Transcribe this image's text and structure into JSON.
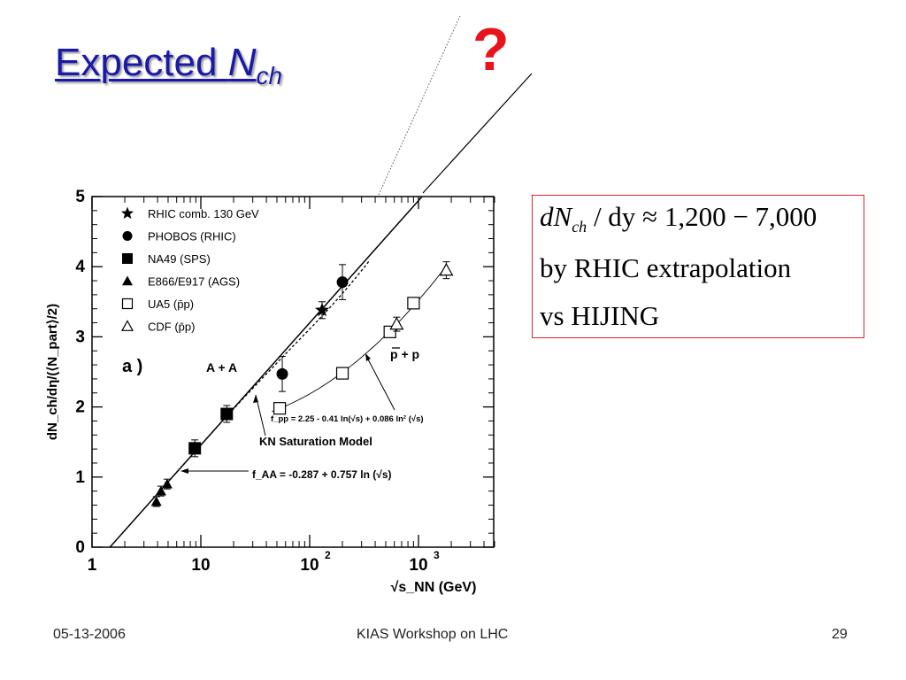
{
  "slide": {
    "title_main": "Expected ",
    "title_n": "N",
    "title_sub": "ch",
    "question_mark": "?",
    "footer_date": "05-13-2006",
    "footer_center": "KIAS Workshop on LHC",
    "footer_page": "29"
  },
  "infobox": {
    "line1_var": "dN",
    "line1_sub": "ch",
    "line1_rest": " / dy ≈ 1,200 − 7,000",
    "line2": "by RHIC extrapolation",
    "line3": "vs HIJING"
  },
  "chart_data": {
    "type": "scatter",
    "x_scale": "log",
    "xlim": [
      1,
      5000
    ],
    "ylim": [
      0,
      5
    ],
    "x_ticks": [
      {
        "value": 1,
        "label": "1"
      },
      {
        "value": 10,
        "label": "10"
      },
      {
        "value": 100,
        "label": "10",
        "sup": "2"
      },
      {
        "value": 1000,
        "label": "10",
        "sup": "3"
      }
    ],
    "y_ticks": [
      "0",
      "1",
      "2",
      "3",
      "4",
      "5"
    ],
    "xlabel": "√s_NN (GeV)",
    "ylabel": "dN_ch/dη/(⟨N_part⟩/2)",
    "panel_label": "a )",
    "legend_position": "top-left",
    "series": [
      {
        "name": "RHIC comb. 130 GeV",
        "marker": "star",
        "points": [
          {
            "x": 130,
            "y": 3.38,
            "err": 0.12
          }
        ]
      },
      {
        "name": "PHOBOS (RHIC)",
        "marker": "circle",
        "points": [
          {
            "x": 56,
            "y": 2.47,
            "err": 0.25
          },
          {
            "x": 200,
            "y": 3.78,
            "err": 0.25
          }
        ]
      },
      {
        "name": "NA49 (SPS)",
        "marker": "square",
        "points": [
          {
            "x": 8.8,
            "y": 1.41,
            "err": 0.12
          },
          {
            "x": 17.3,
            "y": 1.9,
            "err": 0.12
          }
        ]
      },
      {
        "name": "E866/E917 (AGS)",
        "marker": "triangle",
        "points": [
          {
            "x": 3.9,
            "y": 0.65,
            "err": 0.07
          },
          {
            "x": 4.3,
            "y": 0.8,
            "err": 0.07
          },
          {
            "x": 4.9,
            "y": 0.9,
            "err": 0.07
          }
        ]
      },
      {
        "name": "UA5 (p̄p)",
        "marker": "open-square",
        "points": [
          {
            "x": 53,
            "y": 1.98,
            "err": 0.07
          },
          {
            "x": 200,
            "y": 2.48,
            "err": 0.05
          },
          {
            "x": 546,
            "y": 3.07,
            "err": 0.05
          },
          {
            "x": 900,
            "y": 3.48,
            "err": 0.05
          }
        ]
      },
      {
        "name": "CDF (p̄p)",
        "marker": "open-triangle",
        "points": [
          {
            "x": 630,
            "y": 3.18,
            "err": 0.1
          },
          {
            "x": 1800,
            "y": 3.95,
            "err": 0.12
          }
        ]
      }
    ],
    "curves": [
      {
        "id": "f_AA",
        "label": "f_AA = -0.287 + 0.757 ln (√s)",
        "intercept": -0.287,
        "slope": 0.757
      },
      {
        "id": "f_pp",
        "label": "f_pp = 2.25 - 0.41 ln(√s) + 0.086 ln² (√s)",
        "coeffs": [
          2.25,
          -0.41,
          0.086
        ]
      },
      {
        "id": "kn",
        "label": "KN Saturation Model"
      }
    ],
    "annotations": {
      "aa_label": "A + A",
      "pp_label": "p + p"
    }
  }
}
